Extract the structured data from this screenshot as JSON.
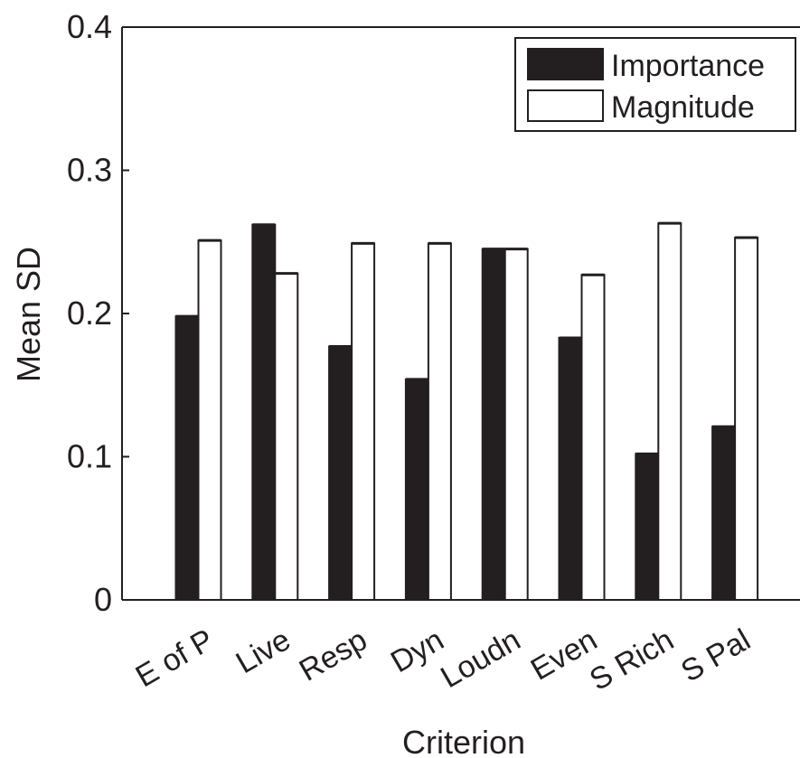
{
  "chart_data": {
    "type": "bar",
    "title": "",
    "xlabel": "Criterion",
    "ylabel": "Mean SD",
    "ylim": [
      0,
      0.4
    ],
    "yticks": [
      "0",
      "0.1",
      "0.2",
      "0.3",
      "0.4"
    ],
    "categories": [
      "E of P",
      "Live",
      "Resp",
      "Dyn",
      "Loudn",
      "Even",
      "S Rich",
      "S Pal"
    ],
    "series": [
      {
        "name": "Importance",
        "color": "#231f20",
        "values": [
          0.198,
          0.262,
          0.177,
          0.154,
          0.245,
          0.183,
          0.102,
          0.121
        ]
      },
      {
        "name": "Magnitude",
        "color": "#ffffff",
        "values": [
          0.251,
          0.228,
          0.249,
          0.249,
          0.245,
          0.227,
          0.263,
          0.253
        ]
      }
    ],
    "grid": false,
    "legend": "top-right"
  }
}
